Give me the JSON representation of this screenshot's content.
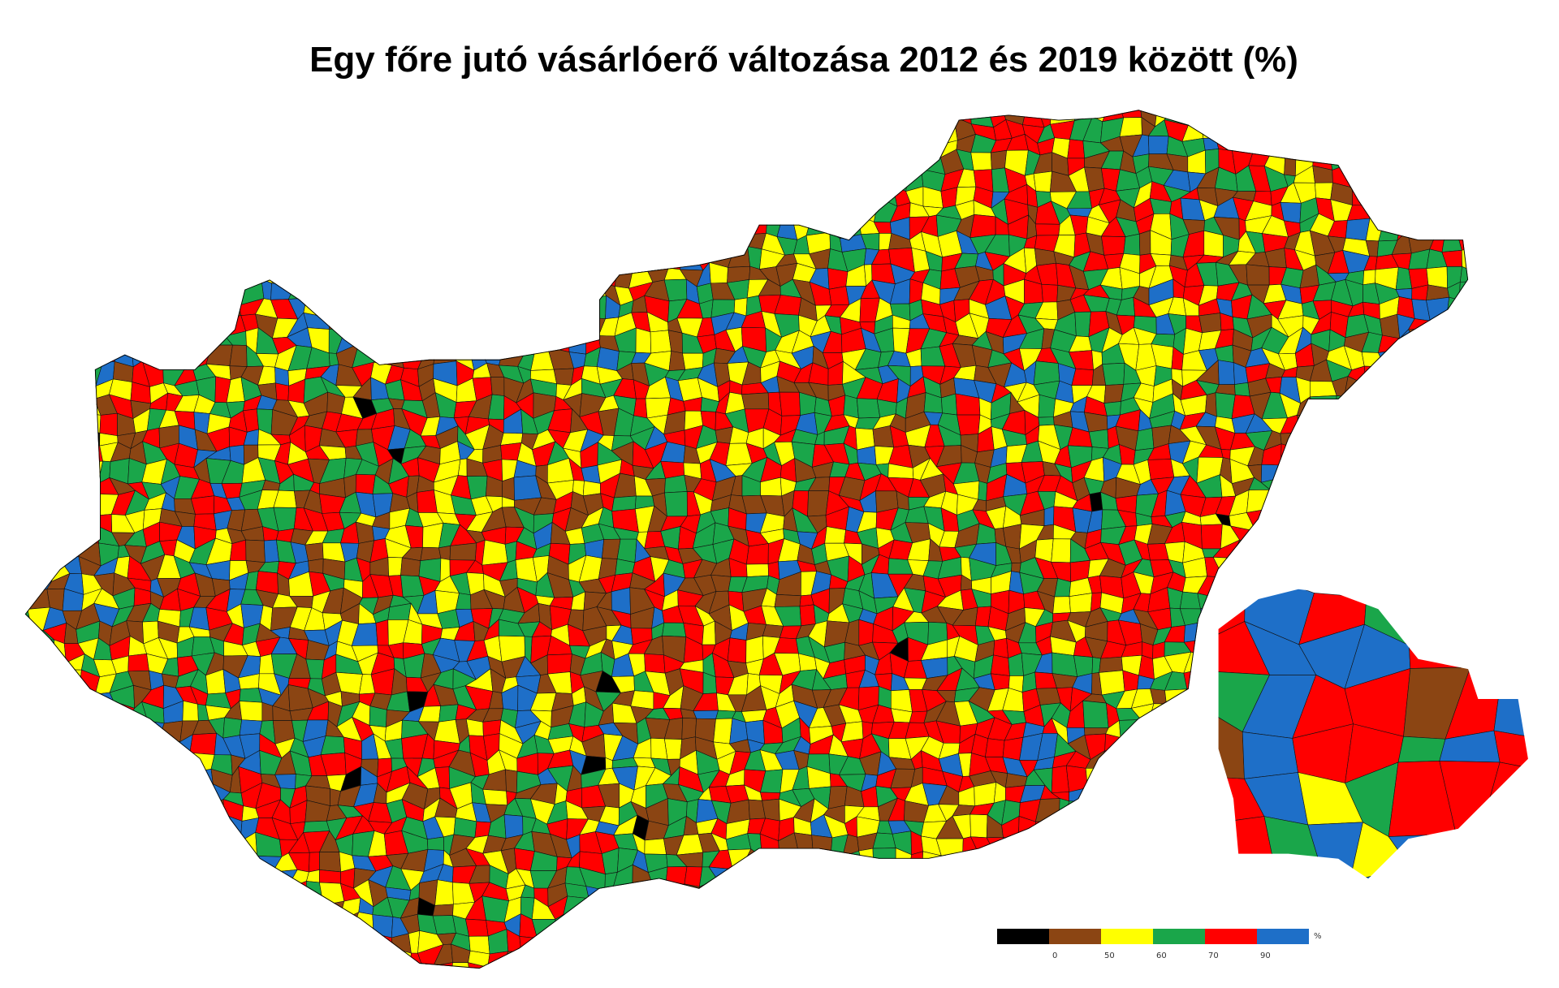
{
  "title": "Egy főre jutó vásárlóerő változása 2012 és 2019 között (%)",
  "legend": {
    "colors": [
      "#000000",
      "#8b4513",
      "#ffff00",
      "#1aa64a",
      "#ff0000",
      "#1e6fc8"
    ],
    "labels": [
      "0",
      "50",
      "60",
      "70",
      "90"
    ],
    "unit": "%"
  }
}
